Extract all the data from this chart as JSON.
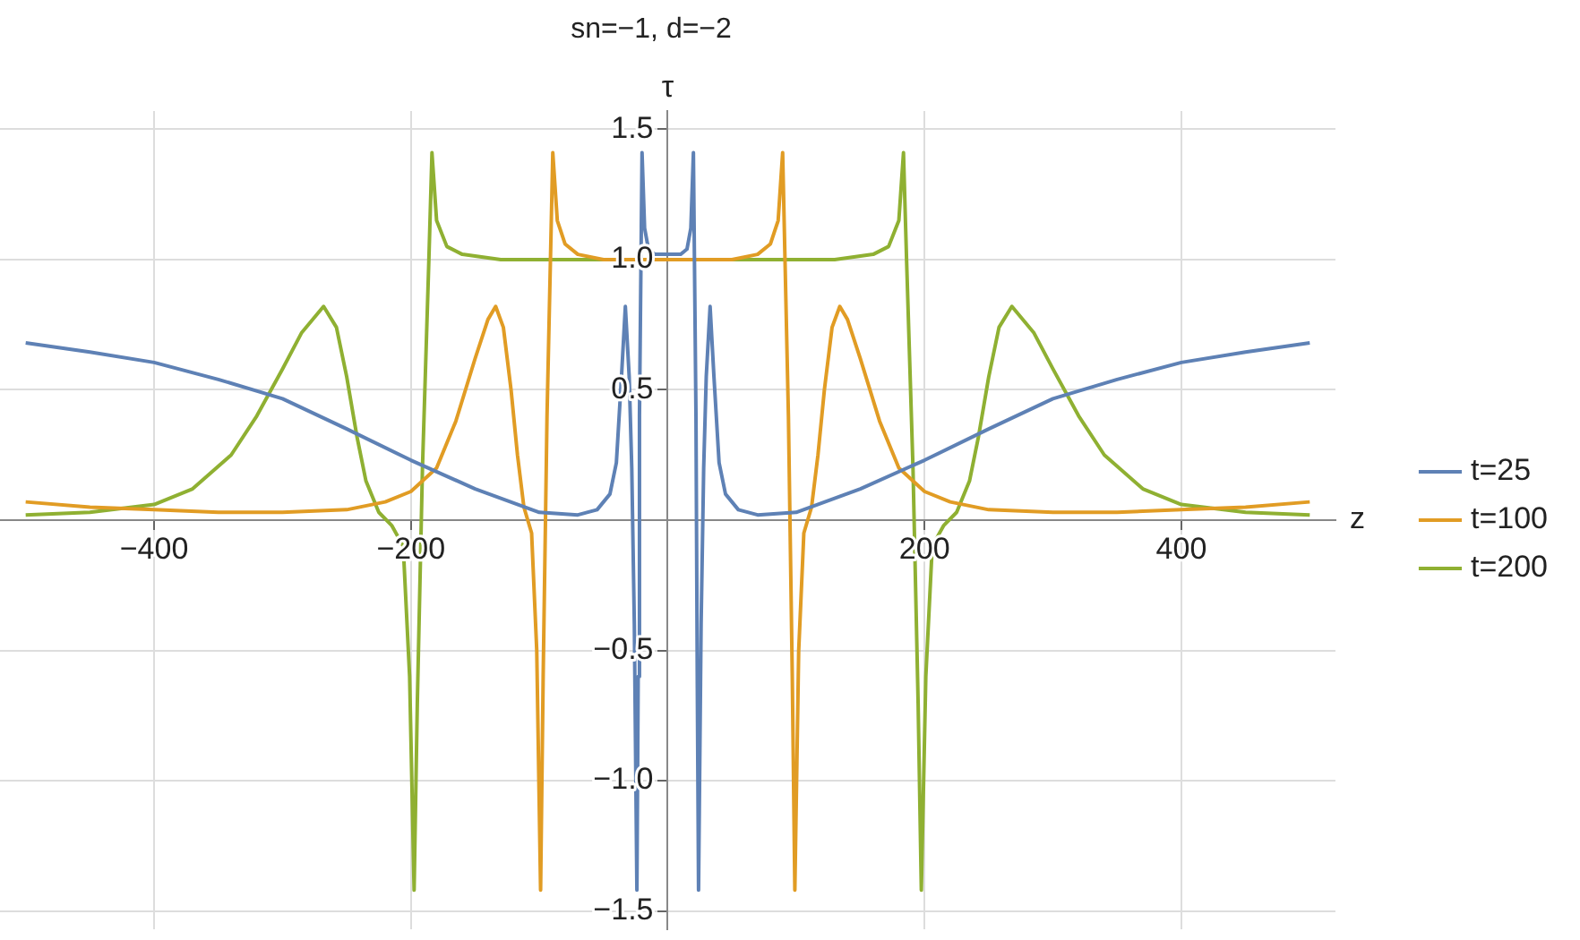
{
  "chart_data": {
    "type": "line",
    "title": "sn=−1, d=−2",
    "xlabel": "z",
    "ylabel": "τ",
    "xlim": [
      -520,
      520
    ],
    "ylim": [
      -1.57,
      1.57
    ],
    "xticks": [
      {
        "value": -400,
        "label": "−400"
      },
      {
        "value": -200,
        "label": "−200"
      },
      200,
      400
    ],
    "yticks": [
      {
        "value": -1.5,
        "label": "−1.5"
      },
      {
        "value": -1,
        "label": "−1.0"
      },
      {
        "value": -0.5,
        "label": "−0.5"
      },
      0.5,
      {
        "value": 1,
        "label": "1.0"
      },
      1.5
    ],
    "grid": true,
    "legend": "right",
    "marker": "none",
    "line_style": "solid",
    "series": [
      {
        "name": "t=25",
        "color": "#5e81b5",
        "x": [
          -500,
          -450,
          -400,
          -350,
          -300,
          -250,
          -200,
          -150,
          -100,
          -70,
          -55,
          -45,
          -40,
          -36,
          -33,
          -30,
          -28,
          -26,
          -24,
          -23,
          -22,
          -20,
          -18,
          -15,
          -10,
          0,
          10,
          15,
          18,
          20,
          22,
          23,
          24,
          26,
          28,
          30,
          33,
          36,
          40,
          45,
          55,
          70,
          100,
          150,
          200,
          250,
          300,
          350,
          400,
          450,
          500
        ],
        "values": [
          0.68,
          0.645,
          0.605,
          0.54,
          0.466,
          0.35,
          0.23,
          0.12,
          0.03,
          0.02,
          0.04,
          0.1,
          0.22,
          0.55,
          0.82,
          0.55,
          0.2,
          -0.4,
          -1.42,
          -0.6,
          0.4,
          1.41,
          1.12,
          1.04,
          1.02,
          1.02,
          1.02,
          1.04,
          1.12,
          1.41,
          0.4,
          -0.6,
          -1.42,
          -0.4,
          0.2,
          0.55,
          0.82,
          0.55,
          0.22,
          0.1,
          0.04,
          0.02,
          0.03,
          0.12,
          0.23,
          0.35,
          0.466,
          0.54,
          0.605,
          0.645,
          0.68
        ]
      },
      {
        "name": "t=100",
        "color": "#e19c24",
        "x": [
          -500,
          -450,
          -400,
          -350,
          -300,
          -250,
          -220,
          -200,
          -180,
          -165,
          -150,
          -140,
          -134,
          -128,
          -122,
          -117,
          -112,
          -106,
          -102,
          -99,
          -97,
          -94,
          -89.5,
          -86,
          -80,
          -70,
          -50,
          0,
          50,
          70,
          80,
          86,
          89.5,
          94,
          97,
          99,
          102,
          106,
          112,
          117,
          122,
          128,
          134,
          140,
          150,
          165,
          180,
          200,
          220,
          250,
          300,
          350,
          400,
          450,
          500
        ],
        "values": [
          0.07,
          0.05,
          0.04,
          0.03,
          0.03,
          0.04,
          0.07,
          0.11,
          0.2,
          0.38,
          0.62,
          0.77,
          0.82,
          0.74,
          0.5,
          0.25,
          0.05,
          -0.05,
          -0.5,
          -1.42,
          -0.6,
          0.4,
          1.41,
          1.15,
          1.06,
          1.02,
          1.0,
          1.0,
          1.0,
          1.02,
          1.06,
          1.15,
          1.41,
          0.4,
          -0.6,
          -1.42,
          -0.5,
          -0.05,
          0.05,
          0.25,
          0.5,
          0.74,
          0.82,
          0.77,
          0.62,
          0.38,
          0.2,
          0.11,
          0.07,
          0.04,
          0.03,
          0.03,
          0.04,
          0.05,
          0.07
        ]
      },
      {
        "name": "t=200",
        "color": "#8fb032",
        "x": [
          -500,
          -450,
          -400,
          -370,
          -340,
          -320,
          -300,
          -285,
          -268,
          -258,
          -250,
          -242,
          -235,
          -225,
          -215,
          -206,
          -201,
          -197.5,
          -195,
          -191,
          -186,
          -183.6,
          -180,
          -172,
          -160,
          -130,
          0,
          130,
          160,
          172,
          180,
          183.6,
          186,
          191,
          195,
          197.5,
          201,
          206,
          215,
          225,
          235,
          242,
          250,
          258,
          268,
          285,
          300,
          320,
          340,
          370,
          400,
          450,
          500
        ],
        "values": [
          0.02,
          0.03,
          0.06,
          0.12,
          0.25,
          0.4,
          0.58,
          0.72,
          0.82,
          0.74,
          0.55,
          0.32,
          0.15,
          0.03,
          -0.02,
          -0.1,
          -0.6,
          -1.42,
          -0.7,
          0.2,
          1.0,
          1.41,
          1.15,
          1.05,
          1.02,
          1.0,
          1.0,
          1.0,
          1.02,
          1.05,
          1.15,
          1.41,
          1.0,
          0.2,
          -0.7,
          -1.42,
          -0.6,
          -0.1,
          -0.02,
          0.03,
          0.15,
          0.32,
          0.55,
          0.74,
          0.82,
          0.72,
          0.58,
          0.4,
          0.25,
          0.12,
          0.06,
          0.03,
          0.02
        ]
      }
    ]
  }
}
